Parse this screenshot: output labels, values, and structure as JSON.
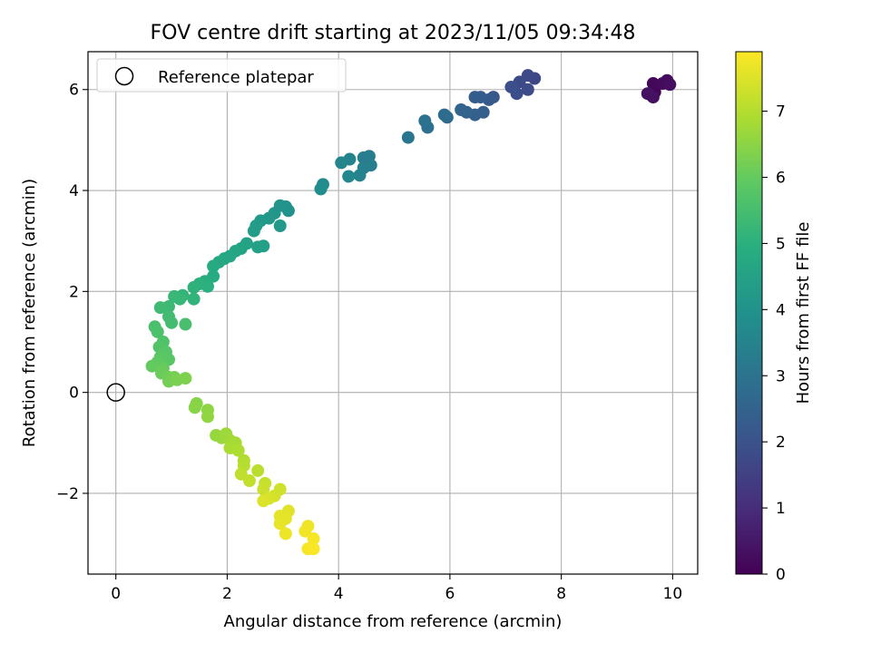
{
  "chart_data": {
    "type": "scatter",
    "title": "FOV centre drift starting at 2023/11/05 09:34:48",
    "xlabel": "Angular distance from reference (arcmin)",
    "ylabel": "Rotation from reference (arcmin)",
    "xlim": [
      -0.5,
      10.45
    ],
    "ylim": [
      -3.6,
      6.75
    ],
    "xticks": [
      0,
      2,
      4,
      6,
      8,
      10
    ],
    "yticks": [
      -2,
      0,
      2,
      4,
      6
    ],
    "xtick_labels": [
      "0",
      "2",
      "4",
      "6",
      "8",
      "10"
    ],
    "ytick_labels": [
      "−2",
      "0",
      "2",
      "4",
      "6"
    ],
    "grid": true,
    "legend": {
      "position": "top-left",
      "entries": [
        {
          "label": "Reference platepar",
          "marker": "open-circle"
        }
      ]
    },
    "reference_point": {
      "x": 0,
      "y": 0
    },
    "colormap": "viridis",
    "colorbar": {
      "label": "Hours from first FF file",
      "range": [
        0,
        7.9
      ],
      "ticks": [
        0,
        1,
        2,
        3,
        4,
        5,
        6,
        7
      ],
      "tick_labels": [
        "0",
        "1",
        "2",
        "3",
        "4",
        "5",
        "6",
        "7"
      ]
    },
    "points": [
      {
        "x": 9.6,
        "y": 5.9,
        "t": 0.05
      },
      {
        "x": 9.68,
        "y": 5.95,
        "t": 0.1
      },
      {
        "x": 9.65,
        "y": 6.12,
        "t": 0.15
      },
      {
        "x": 9.82,
        "y": 6.12,
        "t": 0.2
      },
      {
        "x": 9.9,
        "y": 6.18,
        "t": 0.25
      },
      {
        "x": 9.95,
        "y": 6.1,
        "t": 0.3
      },
      {
        "x": 9.65,
        "y": 5.85,
        "t": 0.35
      },
      {
        "x": 9.55,
        "y": 5.92,
        "t": 0.4
      },
      {
        "x": 7.52,
        "y": 6.22,
        "t": 1.7
      },
      {
        "x": 7.4,
        "y": 6.28,
        "t": 1.75
      },
      {
        "x": 7.25,
        "y": 6.15,
        "t": 1.8
      },
      {
        "x": 7.4,
        "y": 6.0,
        "t": 1.85
      },
      {
        "x": 7.2,
        "y": 5.92,
        "t": 1.9
      },
      {
        "x": 7.1,
        "y": 6.05,
        "t": 1.95
      },
      {
        "x": 6.78,
        "y": 5.85,
        "t": 2.2
      },
      {
        "x": 6.7,
        "y": 5.8,
        "t": 2.25
      },
      {
        "x": 6.55,
        "y": 5.85,
        "t": 2.3
      },
      {
        "x": 6.45,
        "y": 5.85,
        "t": 2.35
      },
      {
        "x": 6.6,
        "y": 5.55,
        "t": 2.4
      },
      {
        "x": 6.45,
        "y": 5.5,
        "t": 2.45
      },
      {
        "x": 6.3,
        "y": 5.55,
        "t": 2.5
      },
      {
        "x": 6.2,
        "y": 5.6,
        "t": 2.55
      },
      {
        "x": 5.95,
        "y": 5.45,
        "t": 2.75
      },
      {
        "x": 5.9,
        "y": 5.5,
        "t": 2.8
      },
      {
        "x": 5.6,
        "y": 5.25,
        "t": 2.9
      },
      {
        "x": 5.55,
        "y": 5.38,
        "t": 2.95
      },
      {
        "x": 5.25,
        "y": 5.05,
        "t": 3.1
      },
      {
        "x": 4.55,
        "y": 4.68,
        "t": 3.3
      },
      {
        "x": 4.45,
        "y": 4.65,
        "t": 3.35
      },
      {
        "x": 4.58,
        "y": 4.5,
        "t": 3.4
      },
      {
        "x": 4.45,
        "y": 4.45,
        "t": 3.45
      },
      {
        "x": 4.38,
        "y": 4.3,
        "t": 3.5
      },
      {
        "x": 4.2,
        "y": 4.62,
        "t": 3.55
      },
      {
        "x": 4.05,
        "y": 4.55,
        "t": 3.6
      },
      {
        "x": 4.18,
        "y": 4.28,
        "t": 3.65
      },
      {
        "x": 3.72,
        "y": 4.12,
        "t": 3.8
      },
      {
        "x": 3.68,
        "y": 4.03,
        "t": 3.85
      },
      {
        "x": 3.1,
        "y": 3.6,
        "t": 4.0
      },
      {
        "x": 3.05,
        "y": 3.68,
        "t": 4.05
      },
      {
        "x": 2.95,
        "y": 3.7,
        "t": 4.1
      },
      {
        "x": 2.85,
        "y": 3.55,
        "t": 4.15
      },
      {
        "x": 2.75,
        "y": 3.45,
        "t": 4.2
      },
      {
        "x": 2.95,
        "y": 3.3,
        "t": 4.25
      },
      {
        "x": 2.6,
        "y": 3.4,
        "t": 4.3
      },
      {
        "x": 2.52,
        "y": 3.3,
        "t": 4.35
      },
      {
        "x": 2.48,
        "y": 3.2,
        "t": 4.4
      },
      {
        "x": 2.65,
        "y": 2.9,
        "t": 4.45
      },
      {
        "x": 2.55,
        "y": 2.88,
        "t": 4.5
      },
      {
        "x": 2.35,
        "y": 2.95,
        "t": 4.55
      },
      {
        "x": 2.25,
        "y": 2.85,
        "t": 4.6
      },
      {
        "x": 2.15,
        "y": 2.8,
        "t": 4.65
      },
      {
        "x": 2.05,
        "y": 2.7,
        "t": 4.7
      },
      {
        "x": 1.95,
        "y": 2.65,
        "t": 4.75
      },
      {
        "x": 1.85,
        "y": 2.58,
        "t": 4.8
      },
      {
        "x": 1.75,
        "y": 2.5,
        "t": 4.85
      },
      {
        "x": 1.75,
        "y": 2.3,
        "t": 4.9
      },
      {
        "x": 1.6,
        "y": 2.2,
        "t": 4.95
      },
      {
        "x": 1.65,
        "y": 2.1,
        "t": 5.0
      },
      {
        "x": 1.5,
        "y": 2.15,
        "t": 5.05
      },
      {
        "x": 1.4,
        "y": 2.08,
        "t": 5.1
      },
      {
        "x": 1.4,
        "y": 1.85,
        "t": 5.15
      },
      {
        "x": 1.2,
        "y": 1.92,
        "t": 5.2
      },
      {
        "x": 1.15,
        "y": 1.85,
        "t": 5.25
      },
      {
        "x": 1.05,
        "y": 1.9,
        "t": 5.3
      },
      {
        "x": 0.95,
        "y": 1.7,
        "t": 5.35
      },
      {
        "x": 0.8,
        "y": 1.68,
        "t": 5.4
      },
      {
        "x": 0.95,
        "y": 1.5,
        "t": 5.45
      },
      {
        "x": 1.0,
        "y": 1.38,
        "t": 5.5
      },
      {
        "x": 1.25,
        "y": 1.35,
        "t": 5.55
      },
      {
        "x": 0.7,
        "y": 1.3,
        "t": 5.6
      },
      {
        "x": 0.75,
        "y": 1.2,
        "t": 5.65
      },
      {
        "x": 0.85,
        "y": 1.0,
        "t": 5.7
      },
      {
        "x": 0.78,
        "y": 0.9,
        "t": 5.75
      },
      {
        "x": 0.9,
        "y": 0.8,
        "t": 5.8
      },
      {
        "x": 0.95,
        "y": 0.65,
        "t": 5.85
      },
      {
        "x": 0.8,
        "y": 0.7,
        "t": 5.9
      },
      {
        "x": 0.75,
        "y": 0.6,
        "t": 5.95
      },
      {
        "x": 0.65,
        "y": 0.52,
        "t": 6.0
      },
      {
        "x": 0.85,
        "y": 0.48,
        "t": 6.05
      },
      {
        "x": 0.82,
        "y": 0.38,
        "t": 6.1
      },
      {
        "x": 0.95,
        "y": 0.3,
        "t": 6.15
      },
      {
        "x": 0.95,
        "y": 0.22,
        "t": 6.2
      },
      {
        "x": 1.05,
        "y": 0.3,
        "t": 6.25
      },
      {
        "x": 1.1,
        "y": 0.25,
        "t": 6.3
      },
      {
        "x": 1.25,
        "y": 0.28,
        "t": 6.35
      },
      {
        "x": 1.45,
        "y": -0.22,
        "t": 6.45
      },
      {
        "x": 1.42,
        "y": -0.3,
        "t": 6.5
      },
      {
        "x": 1.65,
        "y": -0.35,
        "t": 6.55
      },
      {
        "x": 1.65,
        "y": -0.48,
        "t": 6.6
      },
      {
        "x": 1.8,
        "y": -0.85,
        "t": 6.65
      },
      {
        "x": 1.9,
        "y": -0.9,
        "t": 6.7
      },
      {
        "x": 1.98,
        "y": -0.82,
        "t": 6.75
      },
      {
        "x": 2.05,
        "y": -0.95,
        "t": 6.8
      },
      {
        "x": 2.15,
        "y": -1.0,
        "t": 6.85
      },
      {
        "x": 2.05,
        "y": -1.1,
        "t": 6.9
      },
      {
        "x": 2.2,
        "y": -1.15,
        "t": 6.95
      },
      {
        "x": 2.3,
        "y": -1.35,
        "t": 7.0
      },
      {
        "x": 2.3,
        "y": -1.45,
        "t": 7.05
      },
      {
        "x": 2.55,
        "y": -1.55,
        "t": 7.1
      },
      {
        "x": 2.25,
        "y": -1.62,
        "t": 7.15
      },
      {
        "x": 2.4,
        "y": -1.75,
        "t": 7.2
      },
      {
        "x": 2.68,
        "y": -1.8,
        "t": 7.25
      },
      {
        "x": 2.65,
        "y": -1.92,
        "t": 7.3
      },
      {
        "x": 2.95,
        "y": -1.92,
        "t": 7.35
      },
      {
        "x": 2.85,
        "y": -2.05,
        "t": 7.4
      },
      {
        "x": 2.75,
        "y": -2.1,
        "t": 7.45
      },
      {
        "x": 2.65,
        "y": -2.15,
        "t": 7.5
      },
      {
        "x": 3.1,
        "y": -2.35,
        "t": 7.55
      },
      {
        "x": 2.95,
        "y": -2.45,
        "t": 7.6
      },
      {
        "x": 3.05,
        "y": -2.5,
        "t": 7.62
      },
      {
        "x": 2.95,
        "y": -2.6,
        "t": 7.65
      },
      {
        "x": 3.05,
        "y": -2.8,
        "t": 7.7
      },
      {
        "x": 3.45,
        "y": -2.65,
        "t": 7.72
      },
      {
        "x": 3.4,
        "y": -2.75,
        "t": 7.75
      },
      {
        "x": 3.55,
        "y": -2.9,
        "t": 7.8
      },
      {
        "x": 3.45,
        "y": -3.1,
        "t": 7.82
      },
      {
        "x": 3.55,
        "y": -3.1,
        "t": 7.85
      }
    ]
  }
}
